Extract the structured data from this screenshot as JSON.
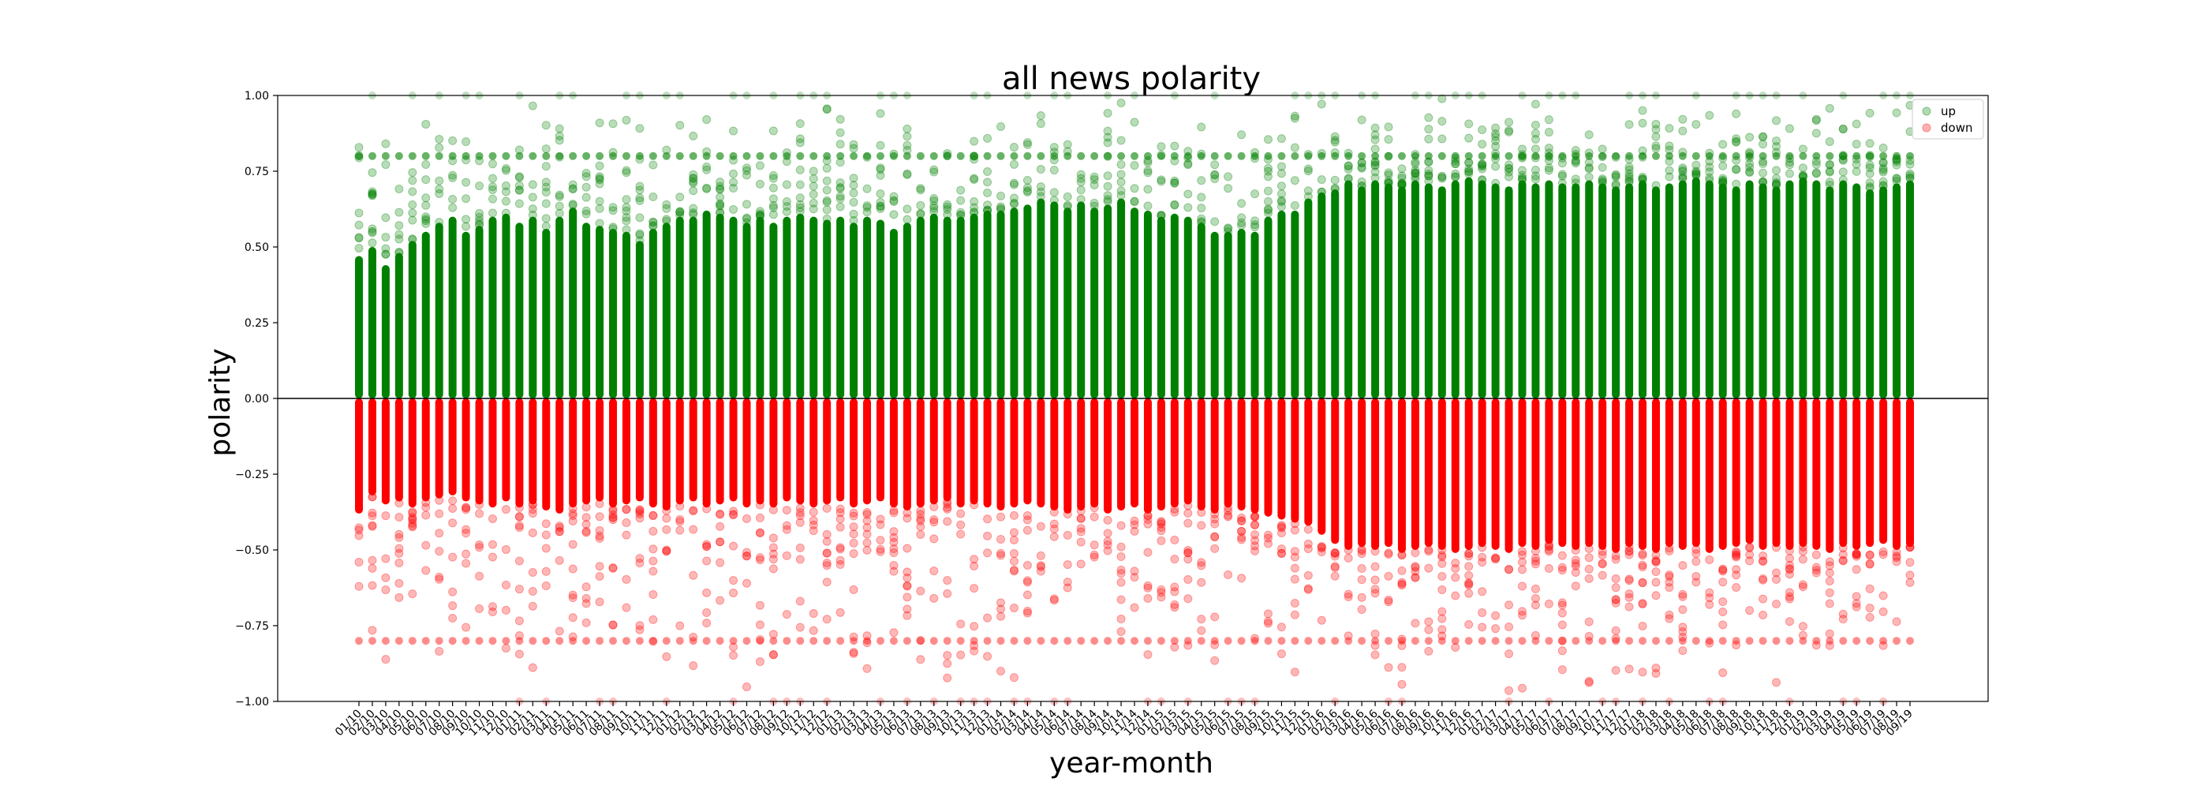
{
  "chart_data": {
    "type": "scatter",
    "title": "all news polarity",
    "xlabel": "year-month",
    "ylabel": "polarity",
    "ylim": [
      -1.0,
      1.0
    ],
    "yticks": [
      "1.00",
      "0.75",
      "0.50",
      "0.25",
      "0.00",
      "−0.25",
      "−0.50",
      "−0.75",
      "−1.00"
    ],
    "categories": [
      "01/10",
      "02/10",
      "03/10",
      "04/10",
      "05/10",
      "06/10",
      "07/10",
      "08/10",
      "09/10",
      "10/10",
      "11/10",
      "12/10",
      "01/11",
      "02/11",
      "03/11",
      "04/11",
      "05/11",
      "06/11",
      "07/11",
      "08/11",
      "09/11",
      "10/11",
      "11/11",
      "12/11",
      "01/12",
      "02/12",
      "03/12",
      "04/12",
      "05/12",
      "06/12",
      "07/12",
      "08/12",
      "09/12",
      "10/12",
      "11/12",
      "12/12",
      "01/13",
      "02/13",
      "03/13",
      "04/13",
      "05/13",
      "06/13",
      "07/13",
      "08/13",
      "09/13",
      "10/13",
      "11/13",
      "12/13",
      "01/14",
      "02/14",
      "03/14",
      "04/14",
      "05/14",
      "06/14",
      "07/14",
      "08/14",
      "09/14",
      "10/14",
      "11/14",
      "12/14",
      "01/15",
      "02/15",
      "03/15",
      "04/15",
      "05/15",
      "06/15",
      "07/15",
      "08/15",
      "09/15",
      "10/15",
      "11/15",
      "12/15",
      "01/16",
      "02/16",
      "03/16",
      "04/16",
      "05/16",
      "06/16",
      "07/16",
      "08/16",
      "09/16",
      "10/16",
      "11/16",
      "12/16",
      "01/17",
      "02/17",
      "03/17",
      "04/17",
      "05/17",
      "06/17",
      "07/17",
      "08/17",
      "09/17",
      "10/17",
      "11/17",
      "12/17",
      "01/18",
      "02/18",
      "03/18",
      "04/18",
      "05/18",
      "06/18",
      "07/18",
      "08/18",
      "09/18",
      "10/18",
      "11/18",
      "12/18",
      "01/19",
      "02/19",
      "03/19",
      "04/19",
      "05/19",
      "06/19",
      "07/19",
      "08/19",
      "09/19"
    ],
    "series": [
      {
        "name": "up",
        "color": "#008000",
        "dense_band_max": [
          0.47,
          0.5,
          0.44,
          0.48,
          0.52,
          0.55,
          0.58,
          0.6,
          0.55,
          0.57,
          0.6,
          0.61,
          0.58,
          0.6,
          0.56,
          0.6,
          0.63,
          0.58,
          0.57,
          0.56,
          0.55,
          0.52,
          0.56,
          0.58,
          0.6,
          0.6,
          0.62,
          0.61,
          0.6,
          0.58,
          0.6,
          0.58,
          0.6,
          0.61,
          0.6,
          0.59,
          0.6,
          0.58,
          0.6,
          0.59,
          0.56,
          0.58,
          0.6,
          0.61,
          0.6,
          0.6,
          0.61,
          0.62,
          0.62,
          0.63,
          0.64,
          0.66,
          0.65,
          0.63,
          0.65,
          0.63,
          0.64,
          0.66,
          0.63,
          0.62,
          0.6,
          0.61,
          0.6,
          0.58,
          0.55,
          0.55,
          0.56,
          0.55,
          0.6,
          0.62,
          0.62,
          0.66,
          0.68,
          0.69,
          0.72,
          0.7,
          0.72,
          0.71,
          0.7,
          0.72,
          0.71,
          0.7,
          0.72,
          0.73,
          0.72,
          0.71,
          0.7,
          0.72,
          0.71,
          0.72,
          0.71,
          0.71,
          0.72,
          0.71,
          0.7,
          0.71,
          0.72,
          0.7,
          0.71,
          0.72,
          0.73,
          0.72,
          0.71,
          0.7,
          0.72,
          0.71,
          0.7,
          0.72,
          0.73,
          0.72,
          0.7,
          0.72,
          0.71,
          0.69,
          0.7,
          0.71,
          0.72
        ],
        "solid_marker": 0.8
      },
      {
        "name": "down",
        "color": "#ff0000",
        "dense_band_min": [
          -0.38,
          -0.32,
          -0.35,
          -0.34,
          -0.36,
          -0.34,
          -0.33,
          -0.32,
          -0.34,
          -0.35,
          -0.36,
          -0.34,
          -0.36,
          -0.35,
          -0.37,
          -0.38,
          -0.36,
          -0.35,
          -0.34,
          -0.36,
          -0.35,
          -0.34,
          -0.36,
          -0.37,
          -0.35,
          -0.34,
          -0.36,
          -0.35,
          -0.34,
          -0.36,
          -0.35,
          -0.36,
          -0.34,
          -0.35,
          -0.36,
          -0.35,
          -0.34,
          -0.36,
          -0.35,
          -0.34,
          -0.36,
          -0.37,
          -0.36,
          -0.35,
          -0.34,
          -0.36,
          -0.35,
          -0.36,
          -0.37,
          -0.36,
          -0.35,
          -0.36,
          -0.37,
          -0.38,
          -0.37,
          -0.36,
          -0.38,
          -0.37,
          -0.36,
          -0.38,
          -0.37,
          -0.36,
          -0.35,
          -0.37,
          -0.38,
          -0.36,
          -0.37,
          -0.38,
          -0.39,
          -0.4,
          -0.41,
          -0.42,
          -0.45,
          -0.48,
          -0.5,
          -0.49,
          -0.5,
          -0.49,
          -0.51,
          -0.5,
          -0.49,
          -0.5,
          -0.51,
          -0.5,
          -0.49,
          -0.5,
          -0.51,
          -0.49,
          -0.5,
          -0.48,
          -0.49,
          -0.5,
          -0.49,
          -0.5,
          -0.51,
          -0.49,
          -0.5,
          -0.51,
          -0.49,
          -0.5,
          -0.49,
          -0.51,
          -0.5,
          -0.49,
          -0.48,
          -0.5,
          -0.49,
          -0.5,
          -0.49,
          -0.5,
          -0.51,
          -0.49,
          -0.5,
          -0.49,
          -0.48,
          -0.5,
          -0.49
        ],
        "solid_marker": -0.8
      }
    ],
    "legend": {
      "entries": [
        "up",
        "down"
      ],
      "placement": "top-right"
    },
    "grid": false,
    "zero_line": true
  }
}
